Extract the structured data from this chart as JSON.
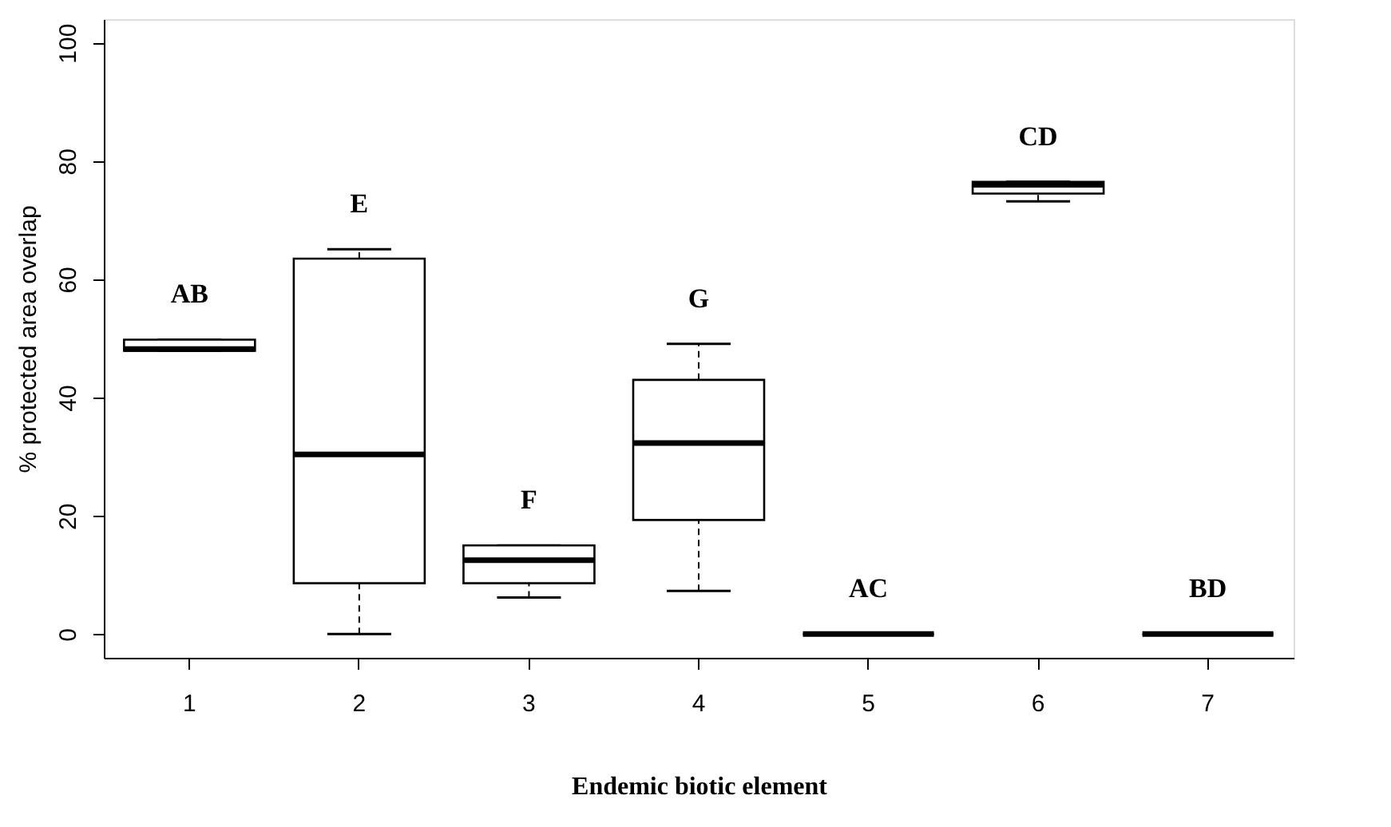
{
  "chart_data": {
    "type": "box",
    "xlabel": "Endemic biotic element",
    "ylabel": "% protected area overlap",
    "categories": [
      "1",
      "2",
      "3",
      "4",
      "5",
      "6",
      "7"
    ],
    "boxes": [
      {
        "low": 47.9,
        "q1": 47.9,
        "median": 48.2,
        "q3": 49.8,
        "high": 49.8
      },
      {
        "low": 0,
        "q1": 8.6,
        "median": 30.4,
        "q3": 63.5,
        "high": 65.1
      },
      {
        "low": 6.2,
        "q1": 8.6,
        "median": 12.5,
        "q3": 15.0,
        "high": 15.0
      },
      {
        "low": 7.3,
        "q1": 19.3,
        "median": 32.3,
        "q3": 43.0,
        "high": 49.1
      },
      {
        "low": 0,
        "q1": 0,
        "median": 0,
        "q3": 0,
        "high": 0
      },
      {
        "low": 73.2,
        "q1": 74.5,
        "median": 76.0,
        "q3": 76.5,
        "high": 76.5
      },
      {
        "low": 0,
        "q1": 0,
        "median": 0,
        "q3": 0,
        "high": 0
      }
    ],
    "annotations": [
      "AB",
      "E",
      "F",
      "G",
      "AC",
      "CD",
      "BD"
    ],
    "ylim": [
      -4,
      104
    ],
    "yticks": [
      0,
      20,
      40,
      60,
      80,
      100
    ],
    "grid": false
  }
}
